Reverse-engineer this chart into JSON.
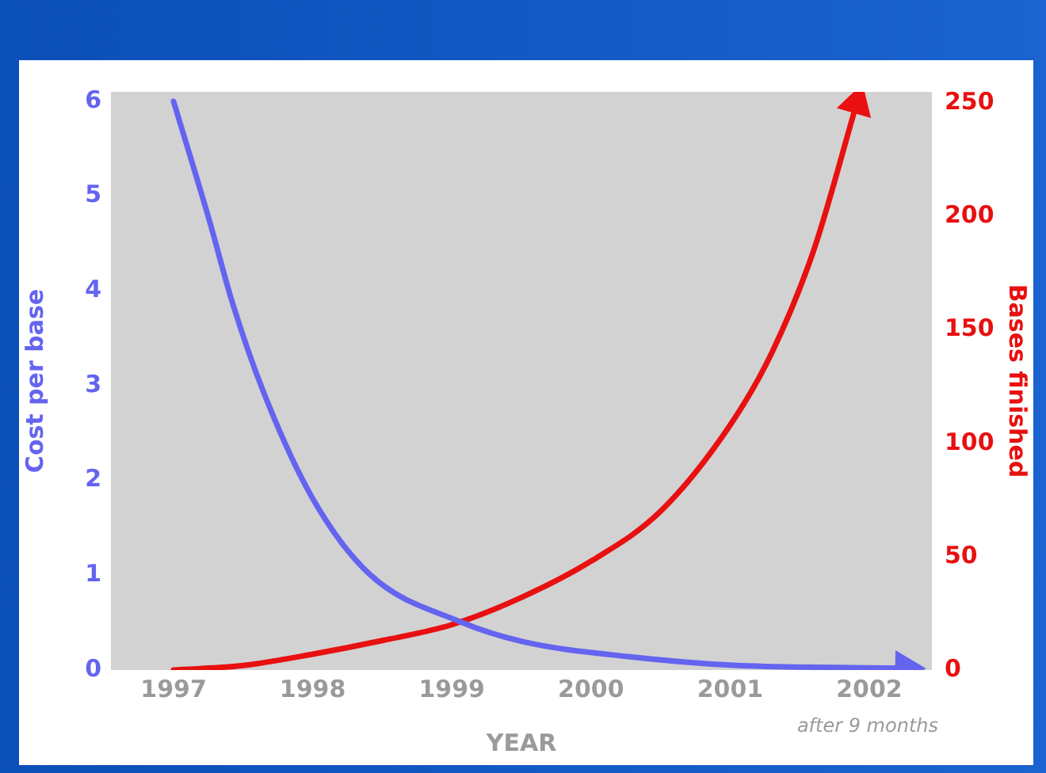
{
  "chart_data": {
    "type": "line",
    "xlabel": "YEAR",
    "ylabel": "Cost per base",
    "y2label": "Bases finished",
    "annotations": [
      "after 9 months"
    ],
    "xlim": [
      1996.55,
      2002.45
    ],
    "xticks": [
      1997,
      1998,
      1999,
      2000,
      2001,
      2002
    ],
    "ylim": [
      0,
      6.1
    ],
    "yticks": [
      0,
      1,
      2,
      3,
      4,
      5,
      6
    ],
    "y2lim": [
      0,
      255
    ],
    "y2ticks": [
      0,
      50,
      100,
      150,
      200,
      250
    ],
    "grid": false,
    "legend": false,
    "marker": "none",
    "line_style": "solid",
    "series": [
      {
        "color": "#6464f0",
        "x": [
          1997,
          1997.26,
          1997.42,
          1997.65,
          1998.0,
          1998.41,
          1999.06,
          1999.51,
          2000.28,
          2001.03,
          2002.26
        ],
        "values": [
          6,
          4.73,
          3.89,
          2.92,
          1.81,
          1.01,
          0.51,
          0.3,
          0.14,
          0.05,
          0.02
        ]
      },
      {
        "color": "#e81010",
        "axis": "y2",
        "x": [
          1997,
          1997.5,
          1998,
          1998.5,
          1999,
          1999.5,
          2000,
          2000.5,
          2001,
          2001.3,
          2001.6,
          2001.91
        ],
        "values": [
          0,
          2,
          7,
          13,
          20,
          32,
          48,
          70,
          108,
          140,
          185,
          250
        ]
      }
    ]
  }
}
